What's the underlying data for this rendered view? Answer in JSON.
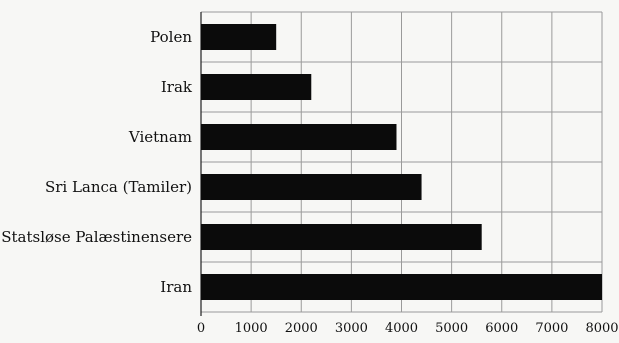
{
  "chart_data": {
    "type": "bar",
    "orientation": "horizontal",
    "categories": [
      "Polen",
      "Irak",
      "Vietnam",
      "Sri Lanca (Tamiler)",
      "Statsløse Palæstinensere",
      "Iran"
    ],
    "values": [
      1500,
      2200,
      3900,
      4400,
      5600,
      8000
    ],
    "xlim": [
      0,
      8000
    ],
    "xticks": [
      0,
      1000,
      2000,
      3000,
      4000,
      5000,
      6000,
      7000,
      8000
    ],
    "grid": true,
    "title": "",
    "xlabel": "",
    "ylabel": "",
    "colors": {
      "bar": "#0b0b0b",
      "grid": "#9a9a9a",
      "background": "#f7f7f5"
    }
  }
}
